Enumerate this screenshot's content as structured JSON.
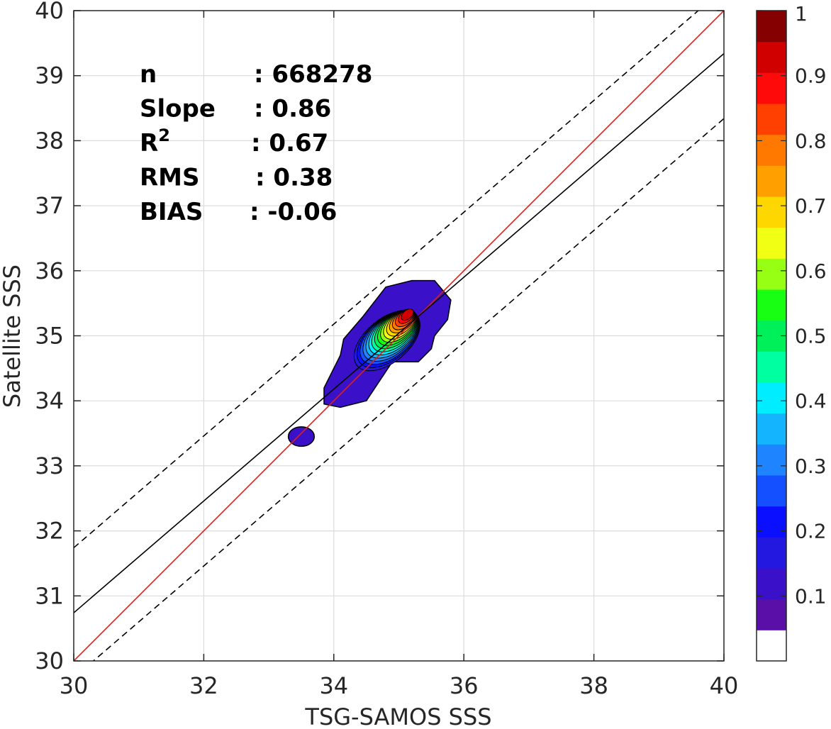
{
  "chart_data": {
    "type": "heatmap",
    "subtype": "density-contour-scatter",
    "xlabel": "TSG-SAMOS SSS",
    "ylabel": "Satellite SSS",
    "xlim": [
      30,
      40
    ],
    "ylim": [
      30,
      40
    ],
    "x_ticks": [
      "30",
      "32",
      "34",
      "36",
      "38",
      "40"
    ],
    "y_ticks": [
      "30",
      "31",
      "32",
      "33",
      "34",
      "35",
      "36",
      "37",
      "38",
      "39",
      "40"
    ],
    "grid": true,
    "stats": [
      {
        "label": "n",
        "value": ": 668278"
      },
      {
        "label": "Slope",
        "value": ": 0.86"
      },
      {
        "label": "R",
        "sup": "2",
        "value": ": 0.67"
      },
      {
        "label": "RMS",
        "value": ": 0.38"
      },
      {
        "label": "BIAS",
        "value": ": -0.06"
      }
    ],
    "lines": [
      {
        "id": "one-to-one",
        "color": "#d42020",
        "style": "solid",
        "slope": 1.0,
        "intercept": 0.0
      },
      {
        "id": "regression",
        "color": "#000000",
        "style": "solid",
        "slope": 0.86,
        "intercept": 4.94
      },
      {
        "id": "upper-bound",
        "color": "#000000",
        "style": "dashed",
        "slope": 0.86,
        "intercept": 5.94
      },
      {
        "id": "lower-bound",
        "color": "#000000",
        "style": "dashed",
        "slope": 0.86,
        "intercept": 3.94
      }
    ],
    "density_peak": {
      "x": 35.15,
      "y": 35.35
    },
    "colorbar": {
      "min": 0,
      "max": 1,
      "tick_labels": [
        "0.1",
        "0.2",
        "0.3",
        "0.4",
        "0.5",
        "0.6",
        "0.7",
        "0.8",
        "0.9",
        "1"
      ],
      "colors": [
        "#ffffff",
        "#5a0fa8",
        "#3a10c8",
        "#2318e0",
        "#0a10ff",
        "#1450ff",
        "#1e84ff",
        "#14b4ff",
        "#00ecff",
        "#00ffa0",
        "#00f05a",
        "#19ff14",
        "#96ff14",
        "#f0ff14",
        "#ffd700",
        "#ffa000",
        "#ff7800",
        "#ff4000",
        "#ff0a0a",
        "#d10000",
        "#850000"
      ]
    }
  }
}
